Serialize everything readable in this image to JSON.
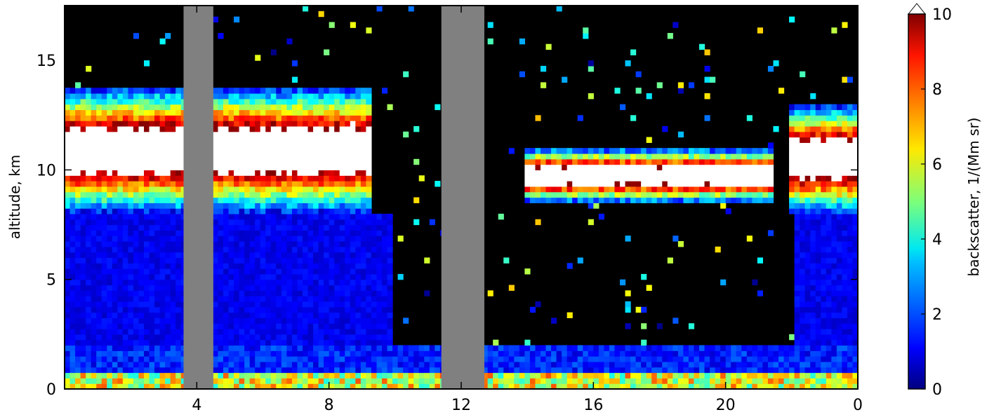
{
  "chart_data": {
    "type": "heatmap",
    "title": "",
    "ylabel": "altitude, km",
    "colorbar_label": "backscatter, 1/(Mm sr)",
    "x_ticks": [
      {
        "label": "4"
      },
      {
        "label": "8"
      },
      {
        "label": "12"
      },
      {
        "label": "16"
      },
      {
        "label": "20"
      },
      {
        "label": "0"
      }
    ],
    "y_ticks": [
      {
        "value": 0,
        "label": "0"
      },
      {
        "value": 5,
        "label": "5"
      },
      {
        "value": 10,
        "label": "10"
      },
      {
        "value": 15,
        "label": "15"
      }
    ],
    "colorbar_ticks": [
      {
        "value": 0,
        "label": "0"
      },
      {
        "value": 2,
        "label": "2"
      },
      {
        "value": 4,
        "label": "4"
      },
      {
        "value": 6,
        "label": "6"
      },
      {
        "value": 8,
        "label": "8"
      },
      {
        "value": 10,
        "label": "10"
      }
    ],
    "x_range_hours": [
      0,
      24
    ],
    "x_tick_hours": [
      4,
      8,
      12,
      16,
      20,
      24
    ],
    "y_range_km": [
      0,
      17.5
    ],
    "colorbar_range": [
      0,
      10
    ],
    "colormap": "jet",
    "colormap_over_color": "#ffffff",
    "nodata_color": "#808080",
    "nodata_periods_hours": [
      [
        3.6,
        4.5
      ],
      [
        11.4,
        12.7
      ]
    ],
    "cloud_features": [
      {
        "description": "cirrus band",
        "time_hours": [
          0,
          9.3
        ],
        "altitude_km": [
          8,
          13.8
        ]
      },
      {
        "description": "cirrus layer",
        "time_hours": [
          14.0,
          21.5
        ],
        "altitude_km": [
          8.5,
          11
        ]
      },
      {
        "description": "cirrus band",
        "time_hours": [
          22,
          24
        ],
        "altitude_km": [
          8,
          13
        ]
      },
      {
        "description": "boundary layer aerosol",
        "time_hours": [
          0,
          24
        ],
        "altitude_km": [
          0,
          2
        ]
      }
    ],
    "grid": false
  }
}
